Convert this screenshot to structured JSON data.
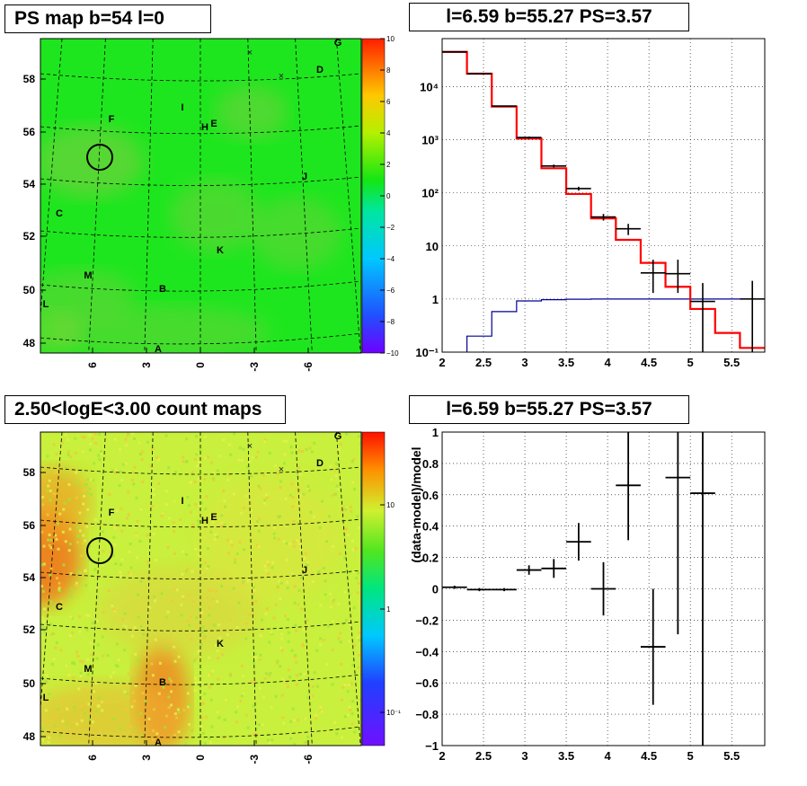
{
  "panels": {
    "tl_title": "PS map b=54 l=0",
    "tr_title": "l=6.59 b=55.27 PS=3.57",
    "bl_title": "2.50<logE<3.00 count maps",
    "br_title": "l=6.59 b=55.27 PS=3.57"
  },
  "ps_map": {
    "lat_ticks": [
      "58",
      "56",
      "54",
      "52",
      "50",
      "48"
    ],
    "lon_ticks": [
      "6",
      "3",
      "0",
      "-3",
      "-6"
    ],
    "colorbar_ticks": [
      "10",
      "8",
      "6",
      "4",
      "2",
      "0",
      "−2",
      "−4",
      "−6",
      "−8",
      "−10"
    ],
    "sources": [
      "G",
      "D",
      "F",
      "I",
      "H",
      "E",
      "J",
      "C",
      "K",
      "M",
      "B",
      "L",
      "A"
    ],
    "base_color": "#1ee61e"
  },
  "count_map": {
    "lat_ticks": [
      "58",
      "56",
      "54",
      "52",
      "50",
      "48"
    ],
    "lon_ticks": [
      "6",
      "3",
      "0",
      "-3",
      "-6"
    ],
    "colorbar_ticks": [
      "10",
      "1",
      "10⁻¹"
    ],
    "sources": [
      "G",
      "D",
      "F",
      "I",
      "H",
      "E",
      "J",
      "C",
      "K",
      "M",
      "B",
      "L",
      "A"
    ],
    "base_color": "#c8f03c"
  },
  "chart_data": [
    {
      "type": "line",
      "title": "l=6.59 b=55.27 PS=3.57",
      "xlabel": "",
      "ylabel": "",
      "xlim": [
        2,
        5.9
      ],
      "ylim": [
        0.1,
        80000
      ],
      "yscale": "log",
      "grid": true,
      "x_ticks": [
        "2",
        "2.5",
        "3",
        "3.5",
        "4",
        "4.5",
        "5",
        "5.5"
      ],
      "y_ticks": [
        "10⁻¹",
        "1",
        "10",
        "10²",
        "10³",
        "10⁴"
      ],
      "bin_edges": [
        2.0,
        2.3,
        2.6,
        2.9,
        3.2,
        3.5,
        3.8,
        4.1,
        4.4,
        4.7,
        5.0,
        5.3,
        5.6,
        5.9
      ],
      "series": [
        {
          "values": [
            45000,
            17500,
            4200,
            1050,
            290,
            95,
            33,
            13,
            4.8,
            1.7,
            0.65,
            0.23,
            0.12
          ],
          "color": "#ff0000"
        },
        {
          "values": [
            0.05,
            0.2,
            0.58,
            0.92,
            0.97,
            0.99,
            1.0,
            1.0,
            1.0,
            1.0,
            1.0,
            1.0,
            1.0
          ],
          "color": "#000099"
        },
        {
          "type": "errorbar",
          "color": "#000000",
          "x": [
            2.15,
            2.45,
            2.75,
            3.05,
            3.35,
            3.65,
            3.95,
            4.25,
            4.55,
            4.85,
            5.15,
            5.75
          ],
          "y": [
            45000,
            17500,
            4300,
            1100,
            320,
            120,
            35,
            21,
            3.1,
            3.0,
            0.9,
            1.0
          ],
          "ylo": [
            44000,
            17200,
            4200,
            1050,
            300,
            110,
            30,
            16,
            1.3,
            1.3,
            0.1,
            0.1
          ],
          "yhi": [
            46000,
            17800,
            4400,
            1150,
            340,
            130,
            40,
            26,
            5.5,
            5.5,
            2.0,
            2.2
          ]
        }
      ]
    },
    {
      "type": "scatter",
      "title": "l=6.59 b=55.27 PS=3.57",
      "xlabel": "",
      "ylabel": "(data-model)/model",
      "xlim": [
        2,
        5.9
      ],
      "ylim": [
        -1,
        1
      ],
      "grid": true,
      "x_ticks": [
        "2",
        "2.5",
        "3",
        "3.5",
        "4",
        "4.5",
        "5",
        "5.5"
      ],
      "y_ticks": [
        "−1",
        "−0.8",
        "−0.6",
        "−0.4",
        "−0.2",
        "0",
        "0.2",
        "0.4",
        "0.6",
        "0.8",
        "1"
      ],
      "series": [
        {
          "x": [
            2.15,
            2.45,
            2.75,
            3.05,
            3.35,
            3.65,
            3.95,
            4.25,
            4.55,
            4.85,
            5.15
          ],
          "y": [
            0.01,
            -0.005,
            -0.005,
            0.12,
            0.13,
            0.3,
            0.0,
            0.66,
            -0.37,
            0.71,
            0.61
          ],
          "yerr": [
            0.01,
            0.01,
            0.01,
            0.03,
            0.06,
            0.12,
            0.17,
            0.35,
            0.37,
            1.0,
            1.7
          ]
        }
      ]
    }
  ]
}
